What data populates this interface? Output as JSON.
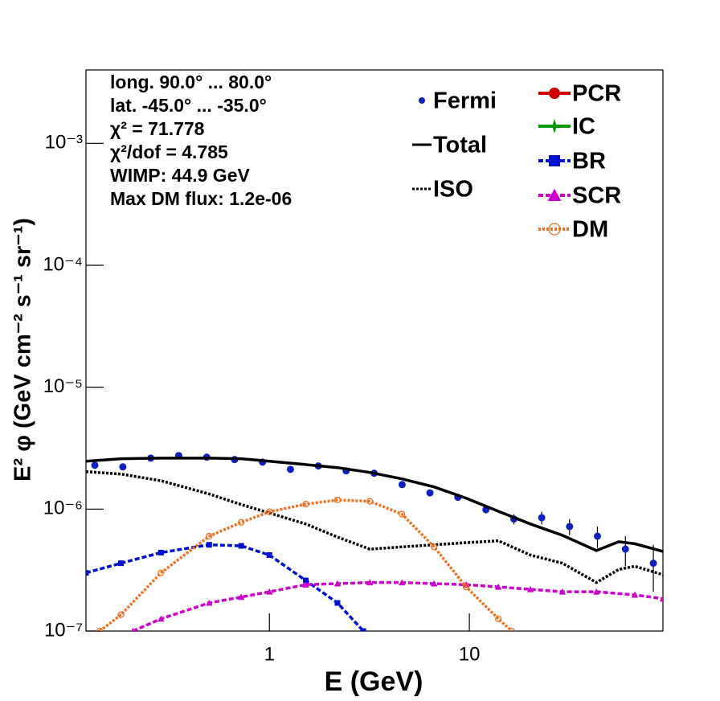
{
  "chart_data": {
    "type": "line",
    "xlabel": "E (GeV)",
    "ylabel": "E² φ (GeV cm⁻² s⁻¹ sr⁻¹)",
    "xscale": "log",
    "yscale": "log",
    "xlim": [
      0.121,
      92.9
    ],
    "ylim": [
      1e-07,
      0.004
    ],
    "xticks": [
      1,
      10
    ],
    "yticks": [
      {
        "value": 1e-07,
        "label": "10⁻⁷"
      },
      {
        "value": 1e-06,
        "label": "10⁻⁶"
      },
      {
        "value": 1e-05,
        "label": "10⁻⁵"
      },
      {
        "value": 0.0001,
        "label": "10⁻⁴"
      },
      {
        "value": 0.001,
        "label": "10⁻³"
      }
    ],
    "annotations": [
      "long. 90.0° ... 80.0°",
      "lat. -45.0° ... -35.0°",
      "χ² = 71.778",
      "χ²/dof = 4.785",
      "WIMP: 44.9 GeV",
      "Max DM flux: 1.2e-06"
    ],
    "series": [
      {
        "name": "Fermi",
        "color": "#1020c0",
        "style": "none",
        "marker": "circle",
        "x": [
          0.134,
          0.185,
          0.255,
          0.352,
          0.486,
          0.67,
          0.924,
          1.274,
          1.757,
          2.42,
          3.34,
          4.61,
          6.35,
          8.76,
          12.1,
          16.7,
          23.0,
          31.7,
          43.7,
          60.3,
          83.2
        ],
        "values": [
          2.29e-06,
          2.22e-06,
          2.62e-06,
          2.75e-06,
          2.67e-06,
          2.55e-06,
          2.43e-06,
          2.12e-06,
          2.26e-06,
          2.06e-06,
          1.97e-06,
          1.59e-06,
          1.36e-06,
          1.25e-06,
          9.9e-07,
          8.3e-07,
          8.5e-07,
          7.2e-07,
          6e-07,
          4.7e-07,
          3.6e-07
        ],
        "errors": [
          3e-08,
          3e-08,
          3e-08,
          3e-08,
          3e-08,
          3e-08,
          3e-08,
          3e-08,
          3e-08,
          3e-08,
          3e-08,
          4e-08,
          5e-08,
          6e-08,
          7e-08,
          8e-08,
          1e-07,
          1.1e-07,
          1.2e-07,
          1.3e-07,
          1.5e-07
        ]
      },
      {
        "name": "Total",
        "color": "#000000",
        "style": "solid",
        "marker": "none",
        "x": [
          0.121,
          0.181,
          0.287,
          0.5,
          0.723,
          1,
          1.52,
          2.19,
          3.18,
          4.6,
          6.66,
          9.64,
          13.96,
          20.2,
          29.2,
          43.2,
          55.8,
          67.2,
          92.9
        ],
        "values": [
          2.47e-06,
          2.59e-06,
          2.62e-06,
          2.62e-06,
          2.59e-06,
          2.47e-06,
          2.32e-06,
          2.19e-06,
          2e-06,
          1.77e-06,
          1.52e-06,
          1.23e-06,
          9.6e-07,
          7.55e-07,
          6.1e-07,
          4.57e-07,
          5.4e-07,
          5.2e-07,
          4.5e-07
        ]
      },
      {
        "name": "ISO",
        "color": "#000000",
        "style": "dotted",
        "marker": "none",
        "x": [
          0.121,
          0.181,
          0.287,
          0.5,
          0.723,
          1,
          1.52,
          2.19,
          3.18,
          4.6,
          6.66,
          9.64,
          13.96,
          20.2,
          29.2,
          43.2,
          55.8,
          67.2,
          92.9
        ],
        "values": [
          2.03e-06,
          1.94e-06,
          1.71e-06,
          1.33e-06,
          1.09e-06,
          9.3e-07,
          7.55e-07,
          5.9e-07,
          4.7e-07,
          4.9e-07,
          5.1e-07,
          5.3e-07,
          5.5e-07,
          4.2e-07,
          3.6e-07,
          2.5e-07,
          3.2e-07,
          3.4e-07,
          2.9e-07
        ]
      },
      {
        "name": "PCR",
        "color": "#cc0000",
        "style": "solid",
        "marker": "circle",
        "x": [],
        "values": []
      },
      {
        "name": "IC",
        "color": "#009900",
        "style": "solid",
        "marker": "star",
        "x": [],
        "values": []
      },
      {
        "name": "BR",
        "color": "#0010cc",
        "style": "dashed",
        "marker": "square",
        "x": [
          0.121,
          0.181,
          0.287,
          0.5,
          0.723,
          1,
          1.52,
          2.19,
          2.95
        ],
        "values": [
          3e-07,
          3.6e-07,
          4.4e-07,
          5.1e-07,
          5e-07,
          4.2e-07,
          2.6e-07,
          1.7e-07,
          1e-07
        ]
      },
      {
        "name": "SCR",
        "color": "#cc00cc",
        "style": "dashed",
        "marker": "triangle",
        "x": [
          0.208,
          0.287,
          0.5,
          0.723,
          1,
          1.52,
          2.19,
          3.18,
          4.6,
          6.66,
          9.64,
          13.96,
          20.2,
          29.2,
          43.2,
          67.2,
          92.9
        ],
        "values": [
          1e-07,
          1.26e-07,
          1.7e-07,
          1.9e-07,
          2.1e-07,
          2.4e-07,
          2.45e-07,
          2.5e-07,
          2.5e-07,
          2.45e-07,
          2.4e-07,
          2.3e-07,
          2.2e-07,
          2.1e-07,
          2.1e-07,
          1.98e-07,
          1.84e-07
        ]
      },
      {
        "name": "DM",
        "color": "#f07020",
        "style": "dotted",
        "marker": "open-circle",
        "x": [
          0.142,
          0.181,
          0.287,
          0.5,
          0.723,
          1,
          1.52,
          2.19,
          3.18,
          4.6,
          6.66,
          9.64,
          13.96,
          16.3
        ],
        "values": [
          1e-07,
          1.36e-07,
          3e-07,
          6e-07,
          7.8e-07,
          9.5e-07,
          1.1e-06,
          1.19e-06,
          1.16e-06,
          9.1e-07,
          4.9e-07,
          2.3e-07,
          1.26e-07,
          1e-07
        ]
      }
    ]
  }
}
